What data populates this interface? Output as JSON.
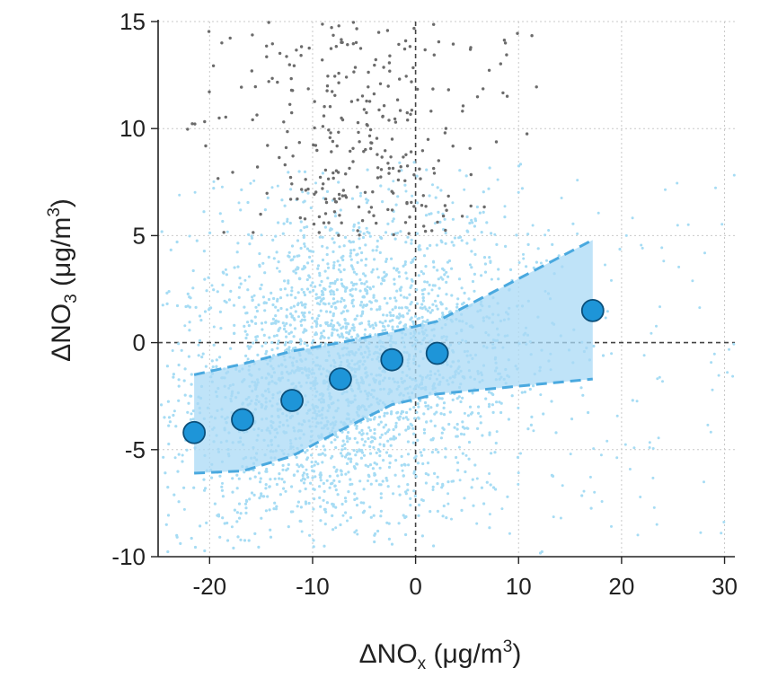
{
  "chart_data": {
    "type": "scatter",
    "xlabel": {
      "prefix": "ΔNO",
      "sub": "x",
      "units_open": " (μg/m",
      "sup": "3",
      "units_close": ")"
    },
    "ylabel": {
      "prefix": "ΔNO",
      "sub": "3",
      "units_open": " (μg/m",
      "sup": "3",
      "units_close": ")"
    },
    "xlim": [
      -25,
      31
    ],
    "ylim": [
      -10,
      15
    ],
    "xticks": [
      -20,
      -10,
      0,
      10,
      20,
      30
    ],
    "yticks": [
      -10,
      -5,
      0,
      5,
      10,
      15
    ],
    "grid": true,
    "zero_lines": true,
    "binned_means": {
      "x": [
        -21.5,
        -16.8,
        -12,
        -7.3,
        -2.3,
        2.1,
        17.2
      ],
      "y": [
        -4.2,
        -3.6,
        -2.7,
        -1.7,
        -0.8,
        -0.5,
        1.5
      ]
    },
    "band": {
      "x": [
        -21.5,
        -16.8,
        -12,
        -7.3,
        -2.3,
        2.1,
        17.2
      ],
      "upper": [
        -1.5,
        -1.0,
        -0.4,
        0.0,
        0.5,
        1.0,
        4.8
      ],
      "lower": [
        -6.1,
        -6.0,
        -5.3,
        -4.1,
        -2.9,
        -2.4,
        -1.7
      ]
    },
    "colors": {
      "light_points": "#a6dcf4",
      "dark_points": "#6b6b6b",
      "band_fill": "#a9daf5",
      "band_edge": "#4aa9df",
      "mean_fill": "#1e95d8",
      "mean_edge": "#0b4f7a",
      "grid": "#c9c9c9",
      "zero_line": "#444444"
    }
  }
}
